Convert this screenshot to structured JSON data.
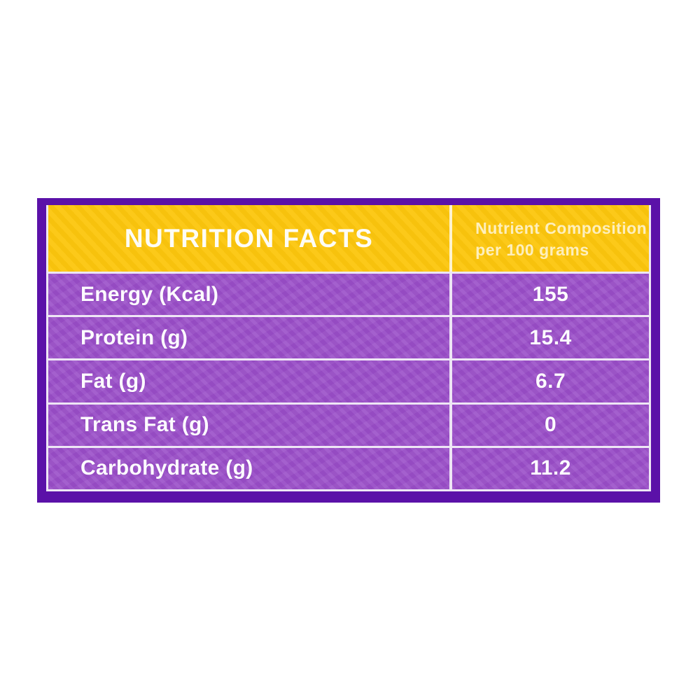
{
  "page": {
    "background_color": "#ffffff"
  },
  "label": {
    "colors": {
      "border_purple": "#5b11a8",
      "row_purple": "#9c52c9",
      "header_yellow": "#fcc60d",
      "line_white": "#eee6f5",
      "text_white": "#fdfbff"
    },
    "header": {
      "title": "NUTRITION FACTS",
      "subtitle_line1": "Nutrient Composition",
      "subtitle_line2": "per 100 grams"
    },
    "rows": [
      {
        "nutrient": "Energy (Kcal)",
        "value": "155"
      },
      {
        "nutrient": "Protein (g)",
        "value": "15.4"
      },
      {
        "nutrient": "Fat (g)",
        "value": "6.7"
      },
      {
        "nutrient": "Trans Fat (g)",
        "value": "0"
      },
      {
        "nutrient": "Carbohydrate (g)",
        "value": "11.2"
      }
    ]
  }
}
